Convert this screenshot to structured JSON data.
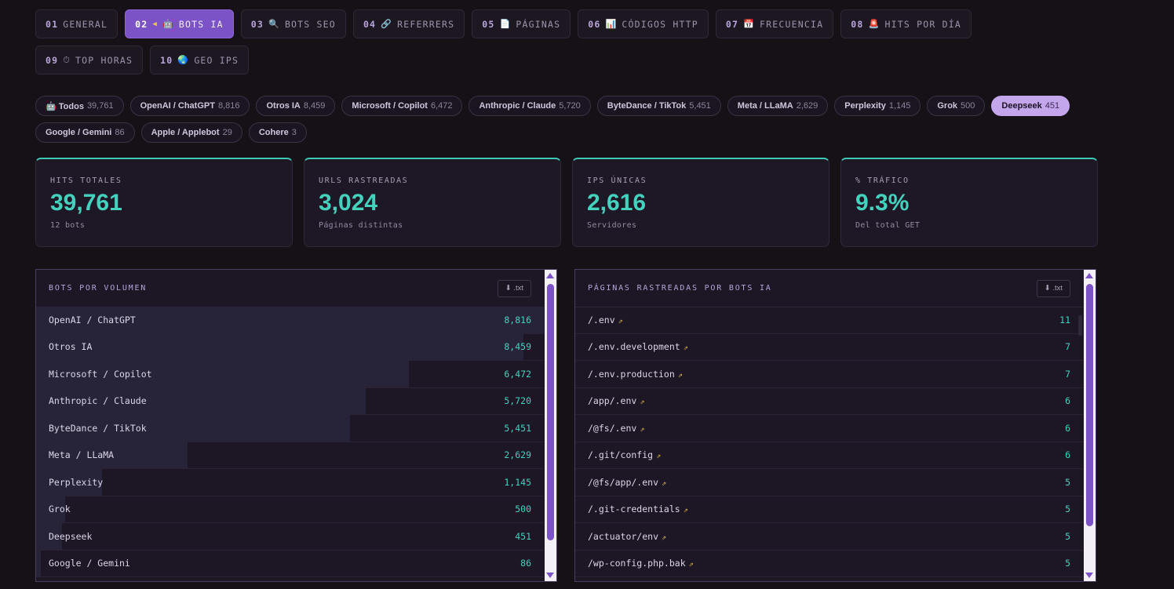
{
  "tabs": [
    {
      "num": "01",
      "icon": "",
      "label": "GENERAL",
      "active": false
    },
    {
      "num": "02",
      "icon": "🤖",
      "label": "BOTS IA",
      "active": true
    },
    {
      "num": "03",
      "icon": "🔍",
      "label": "BOTS SEO",
      "active": false
    },
    {
      "num": "04",
      "icon": "🔗",
      "label": "REFERRERS",
      "active": false
    },
    {
      "num": "05",
      "icon": "📄",
      "label": "PÁGINAS",
      "active": false
    },
    {
      "num": "06",
      "icon": "📊",
      "label": "CÓDIGOS HTTP",
      "active": false
    },
    {
      "num": "07",
      "icon": "📅",
      "label": "FRECUENCIA",
      "active": false
    },
    {
      "num": "08",
      "icon": "🚨",
      "label": "HITS POR DÍA",
      "active": false
    },
    {
      "num": "09",
      "icon": "⏱",
      "label": "TOP HORAS",
      "active": false
    },
    {
      "num": "10",
      "icon": "🌏",
      "label": "GEO IPS",
      "active": false
    }
  ],
  "filters": [
    {
      "label": "🤖 Todos",
      "count": "39,761",
      "active": false
    },
    {
      "label": "OpenAI / ChatGPT",
      "count": "8,816",
      "active": false
    },
    {
      "label": "Otros IA",
      "count": "8,459",
      "active": false
    },
    {
      "label": "Microsoft / Copilot",
      "count": "6,472",
      "active": false
    },
    {
      "label": "Anthropic / Claude",
      "count": "5,720",
      "active": false
    },
    {
      "label": "ByteDance / TikTok",
      "count": "5,451",
      "active": false
    },
    {
      "label": "Meta / LLaMA",
      "count": "2,629",
      "active": false
    },
    {
      "label": "Perplexity",
      "count": "1,145",
      "active": false
    },
    {
      "label": "Grok",
      "count": "500",
      "active": false
    },
    {
      "label": "Deepseek",
      "count": "451",
      "active": true
    },
    {
      "label": "Google / Gemini",
      "count": "86",
      "active": false
    },
    {
      "label": "Apple / Applebot",
      "count": "29",
      "active": false
    },
    {
      "label": "Cohere",
      "count": "3",
      "active": false
    }
  ],
  "stats": [
    {
      "label": "HITS TOTALES",
      "value": "39,761",
      "sub": "12 bots"
    },
    {
      "label": "URLS RASTREADAS",
      "value": "3,024",
      "sub": "Páginas distintas"
    },
    {
      "label": "IPS ÚNICAS",
      "value": "2,616",
      "sub": "Servidores"
    },
    {
      "label": "% TRÁFICO",
      "value": "9.3%",
      "sub": "Del total GET"
    }
  ],
  "bots_panel": {
    "title": "BOTS POR VOLUMEN",
    "download_label": "⬇ .txt",
    "rows": [
      {
        "name": "OpenAI / ChatGPT",
        "count": "8,816",
        "value": 8816
      },
      {
        "name": "Otros IA",
        "count": "8,459",
        "value": 8459
      },
      {
        "name": "Microsoft / Copilot",
        "count": "6,472",
        "value": 6472
      },
      {
        "name": "Anthropic / Claude",
        "count": "5,720",
        "value": 5720
      },
      {
        "name": "ByteDance / TikTok",
        "count": "5,451",
        "value": 5451
      },
      {
        "name": "Meta / LLaMA",
        "count": "2,629",
        "value": 2629
      },
      {
        "name": "Perplexity",
        "count": "1,145",
        "value": 1145
      },
      {
        "name": "Grok",
        "count": "500",
        "value": 500
      },
      {
        "name": "Deepseek",
        "count": "451",
        "value": 451
      },
      {
        "name": "Google / Gemini",
        "count": "86",
        "value": 86
      }
    ],
    "scroll_fraction": 0.9
  },
  "pages_panel": {
    "title": "PÁGINAS RASTREADAS POR BOTS IA",
    "download_label": "⬇ .txt",
    "ext_icon": "⇗",
    "rows": [
      {
        "path": "/.env",
        "count": "11"
      },
      {
        "path": "/.env.development",
        "count": "7"
      },
      {
        "path": "/.env.production",
        "count": "7"
      },
      {
        "path": "/app/.env",
        "count": "6"
      },
      {
        "path": "/@fs/.env",
        "count": "6"
      },
      {
        "path": "/.git/config",
        "count": "6"
      },
      {
        "path": "/@fs/app/.env",
        "count": "5"
      },
      {
        "path": "/.git-credentials",
        "count": "5"
      },
      {
        "path": "/actuator/env",
        "count": "5"
      },
      {
        "path": "/wp-config.php.bak",
        "count": "5"
      }
    ],
    "scroll_fraction": 0.85
  }
}
